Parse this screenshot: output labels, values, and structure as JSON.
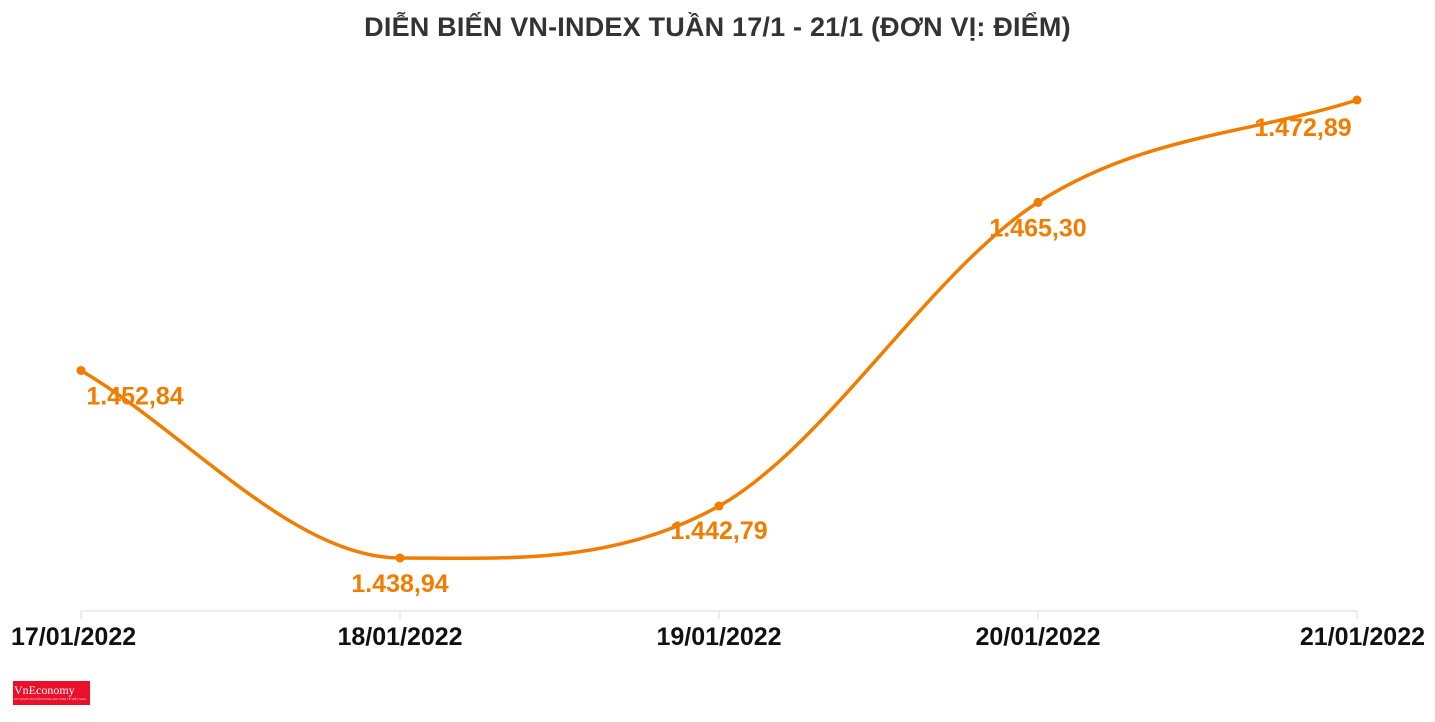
{
  "chart_data": {
    "type": "line",
    "title": "DIỄN BIẾN VN-INDEX TUẦN 17/1 - 21/1 (ĐƠN VỊ: ĐIỂM)",
    "categories": [
      "17/01/2022",
      "18/01/2022",
      "19/01/2022",
      "20/01/2022",
      "21/01/2022"
    ],
    "values": [
      1452.84,
      1438.94,
      1442.79,
      1465.3,
      1472.89
    ],
    "value_labels": [
      "1.452,84",
      "1.438,94",
      "1.442,79",
      "1.465,30",
      "1.472,89"
    ],
    "xlabel": "",
    "ylabel": "",
    "ylim": [
      1438.94,
      1472.89
    ],
    "grid": false,
    "legend": "none",
    "line_color": "#f07d00",
    "axis_color": "#e6e6e6"
  },
  "logo": {
    "name": "VnEconomy",
    "tagline": "CƠ QUAN CỦA HỘI KHOA HỌC KINH TẾ VIỆT NAM",
    "color": "#e8102a"
  }
}
